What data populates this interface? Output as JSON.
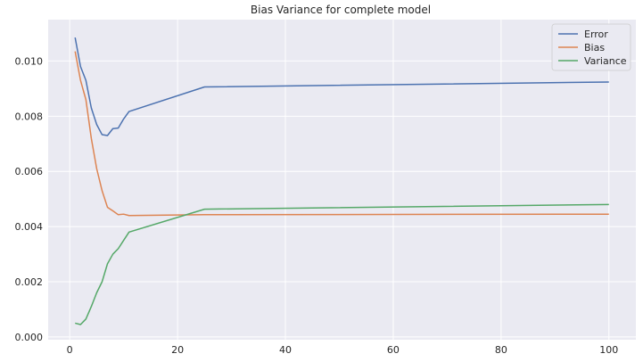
{
  "chart_data": {
    "type": "line",
    "title": "Bias Variance for complete model",
    "xlabel": "",
    "ylabel": "",
    "xlim": [
      -4,
      105
    ],
    "ylim": [
      -0.0001,
      0.0115
    ],
    "x_ticks": [
      0,
      20,
      40,
      60,
      80,
      100
    ],
    "y_ticks": [
      0.0,
      0.002,
      0.004,
      0.006,
      0.008,
      0.01
    ],
    "y_tick_labels": [
      "0.000",
      "0.002",
      "0.004",
      "0.006",
      "0.008",
      "0.010"
    ],
    "grid": true,
    "legend_position": "top-right",
    "series": [
      {
        "name": "Error",
        "color": "#4c72b0",
        "x": [
          1,
          2,
          3,
          4,
          5,
          6,
          7,
          8,
          9,
          10,
          11,
          25,
          100
        ],
        "y": [
          0.01085,
          0.0098,
          0.0093,
          0.0083,
          0.0077,
          0.00733,
          0.0073,
          0.00755,
          0.00757,
          0.0079,
          0.00817,
          0.00906,
          0.00924
        ]
      },
      {
        "name": "Bias",
        "color": "#dd8452",
        "x": [
          1,
          2,
          3,
          4,
          5,
          6,
          7,
          8,
          9,
          10,
          11,
          25,
          100
        ],
        "y": [
          0.01035,
          0.0093,
          0.0086,
          0.0072,
          0.0061,
          0.0053,
          0.0047,
          0.00457,
          0.00443,
          0.00445,
          0.0044,
          0.00443,
          0.00445
        ]
      },
      {
        "name": "Variance",
        "color": "#55a868",
        "x": [
          1,
          2,
          3,
          4,
          5,
          6,
          7,
          8,
          9,
          10,
          11,
          25,
          100
        ],
        "y": [
          0.0005,
          0.00045,
          0.00065,
          0.0011,
          0.0016,
          0.002,
          0.00265,
          0.003,
          0.0032,
          0.0035,
          0.0038,
          0.00463,
          0.0048
        ]
      }
    ]
  }
}
